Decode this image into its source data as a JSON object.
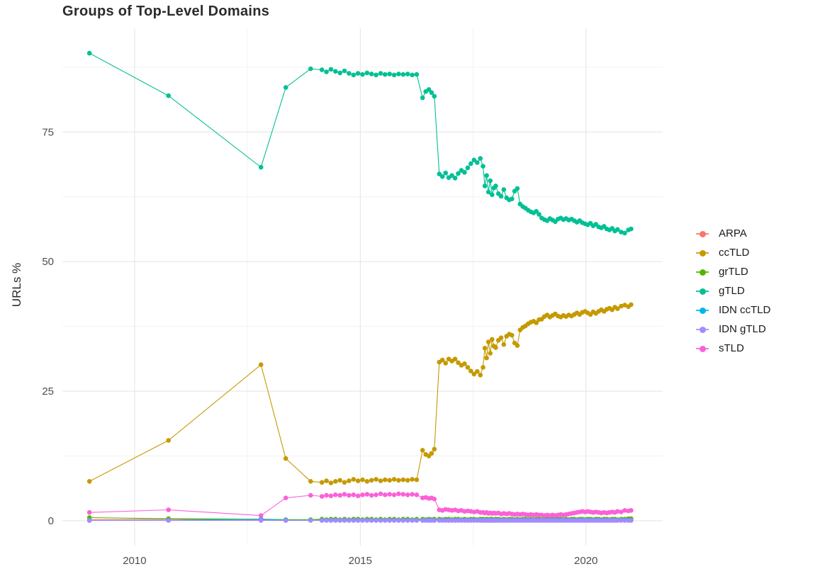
{
  "chart_data": {
    "type": "line",
    "title": "Groups of Top-Level Domains",
    "xlabel": "",
    "ylabel": "URLs %",
    "xlim": [
      2008.4,
      2021.7
    ],
    "ylim": [
      -4.8,
      95
    ],
    "x_ticks": [
      2010,
      2015,
      2020
    ],
    "x_minor_ticks": [
      2012.5,
      2017.5
    ],
    "y_ticks": [
      0,
      25,
      50,
      75
    ],
    "y_minor_ticks": [
      12.5,
      37.5,
      62.5,
      87.5
    ],
    "grid": true,
    "legend_position": "right",
    "x": [
      2009.0,
      2010.75,
      2012.8,
      2013.35,
      2013.9,
      2014.15,
      2014.25,
      2014.35,
      2014.45,
      2014.55,
      2014.65,
      2014.75,
      2014.85,
      2014.95,
      2015.05,
      2015.15,
      2015.25,
      2015.35,
      2015.45,
      2015.55,
      2015.65,
      2015.75,
      2015.85,
      2015.95,
      2016.05,
      2016.15,
      2016.25,
      2016.38,
      2016.45,
      2016.52,
      2016.58,
      2016.64,
      2016.75,
      2016.82,
      2016.89,
      2016.96,
      2017.03,
      2017.1,
      2017.17,
      2017.24,
      2017.31,
      2017.38,
      2017.45,
      2017.52,
      2017.59,
      2017.66,
      2017.72,
      2017.76,
      2017.8,
      2017.84,
      2017.88,
      2017.92,
      2017.96,
      2018.0,
      2018.06,
      2018.12,
      2018.18,
      2018.24,
      2018.3,
      2018.36,
      2018.42,
      2018.48,
      2018.54,
      2018.6,
      2018.66,
      2018.72,
      2018.78,
      2018.84,
      2018.9,
      2018.96,
      2019.02,
      2019.08,
      2019.14,
      2019.2,
      2019.26,
      2019.32,
      2019.38,
      2019.44,
      2019.5,
      2019.56,
      2019.62,
      2019.68,
      2019.74,
      2019.8,
      2019.86,
      2019.92,
      2019.98,
      2020.04,
      2020.1,
      2020.16,
      2020.22,
      2020.28,
      2020.34,
      2020.4,
      2020.46,
      2020.52,
      2020.58,
      2020.64,
      2020.7,
      2020.78,
      2020.86,
      2020.94,
      2021.0
    ],
    "series": [
      {
        "name": "ARPA",
        "color": "#F8766D",
        "values": [
          0.2,
          0.3,
          0.2,
          0.15,
          0.15,
          0.15,
          0.15,
          0.15,
          0.15,
          0.15,
          0.15,
          0.15,
          0.15,
          0.15,
          0.15,
          0.15,
          0.15,
          0.15,
          0.15,
          0.15,
          0.15,
          0.15,
          0.15,
          0.15,
          0.15,
          0.15,
          0.15,
          0.15,
          0.15,
          0.15,
          0.15,
          0.15,
          0.15,
          0.15,
          0.15,
          0.15,
          0.15,
          0.15,
          0.15,
          0.15,
          0.15,
          0.15,
          0.15,
          0.15,
          0.15,
          0.15,
          0.15,
          0.15,
          0.15,
          0.15,
          0.15,
          0.15,
          0.15,
          0.15,
          0.15,
          0.15,
          0.15,
          0.15,
          0.15,
          0.15,
          0.15,
          0.15,
          0.15,
          0.15,
          0.15,
          0.15,
          0.15,
          0.15,
          0.15,
          0.15,
          0.15,
          0.15,
          0.15,
          0.15,
          0.15,
          0.15,
          0.15,
          0.15,
          0.15,
          0.15,
          0.15,
          0.15,
          0.15,
          0.15,
          0.15,
          0.15,
          0.15,
          0.15,
          0.15,
          0.15,
          0.15,
          0.15,
          0.15,
          0.15,
          0.15,
          0.15,
          0.15,
          0.15,
          0.15,
          0.15,
          0.15,
          0.15,
          0.15
        ]
      },
      {
        "name": "ccTLD",
        "color": "#C49A00",
        "values": [
          7.6,
          15.5,
          30.1,
          12.0,
          7.6,
          7.4,
          7.7,
          7.3,
          7.6,
          7.8,
          7.4,
          7.7,
          8.0,
          7.7,
          7.9,
          7.6,
          7.8,
          8.0,
          7.7,
          7.9,
          7.8,
          8.0,
          7.8,
          7.9,
          7.8,
          8.0,
          7.9,
          13.6,
          12.8,
          12.5,
          13.0,
          13.8,
          30.6,
          31.0,
          30.4,
          31.2,
          30.8,
          31.2,
          30.5,
          30.0,
          30.3,
          29.6,
          28.9,
          28.3,
          28.8,
          28.1,
          29.6,
          33.3,
          31.4,
          34.5,
          32.3,
          35.0,
          33.7,
          33.4,
          34.8,
          35.3,
          34.0,
          35.6,
          36.0,
          35.8,
          34.3,
          33.8,
          36.8,
          37.3,
          37.6,
          38.0,
          38.3,
          38.5,
          38.2,
          38.8,
          38.9,
          39.4,
          39.7,
          39.3,
          39.6,
          39.9,
          39.5,
          39.3,
          39.6,
          39.4,
          39.7,
          39.5,
          39.8,
          40.1,
          39.8,
          40.2,
          40.4,
          40.1,
          39.8,
          40.3,
          40.0,
          40.4,
          40.7,
          40.4,
          40.8,
          41.0,
          40.7,
          41.2,
          40.9,
          41.4,
          41.6,
          41.3,
          41.7
        ]
      },
      {
        "name": "grTLD",
        "color": "#53B400",
        "values": [
          0.6,
          0.4,
          0.3,
          0.2,
          0.2,
          0.3,
          0.2,
          0.3,
          0.3,
          0.2,
          0.3,
          0.2,
          0.3,
          0.3,
          0.2,
          0.3,
          0.3,
          0.2,
          0.3,
          0.2,
          0.3,
          0.3,
          0.2,
          0.3,
          0.3,
          0.2,
          0.3,
          0.3,
          0.2,
          0.3,
          0.2,
          0.3,
          0.3,
          0.2,
          0.3,
          0.3,
          0.2,
          0.3,
          0.3,
          0.2,
          0.3,
          0.2,
          0.3,
          0.3,
          0.2,
          0.3,
          0.3,
          0.2,
          0.3,
          0.2,
          0.3,
          0.3,
          0.2,
          0.3,
          0.3,
          0.2,
          0.3,
          0.2,
          0.3,
          0.3,
          0.2,
          0.3,
          0.2,
          0.3,
          0.3,
          0.2,
          0.3,
          0.2,
          0.3,
          0.3,
          0.2,
          0.3,
          0.3,
          0.2,
          0.3,
          0.2,
          0.3,
          0.3,
          0.2,
          0.3,
          0.2,
          0.3,
          0.3,
          0.2,
          0.3,
          0.3,
          0.2,
          0.3,
          0.3,
          0.2,
          0.3,
          0.3,
          0.2,
          0.3,
          0.3,
          0.2,
          0.3,
          0.3,
          0.2,
          0.3,
          0.3,
          0.4,
          0.4
        ]
      },
      {
        "name": "gTLD",
        "color": "#00C094",
        "values": [
          90.2,
          82.0,
          68.2,
          83.6,
          87.2,
          87.0,
          86.6,
          87.1,
          86.7,
          86.4,
          86.8,
          86.3,
          86.0,
          86.3,
          86.1,
          86.4,
          86.2,
          86.0,
          86.3,
          86.1,
          86.2,
          86.0,
          86.2,
          86.1,
          86.2,
          86.0,
          86.1,
          81.6,
          82.8,
          83.2,
          82.6,
          81.9,
          66.9,
          66.4,
          67.1,
          66.2,
          66.6,
          66.1,
          67.0,
          67.6,
          67.2,
          68.1,
          68.9,
          69.6,
          69.1,
          69.9,
          68.4,
          64.6,
          66.6,
          63.4,
          65.6,
          62.9,
          64.2,
          64.6,
          63.1,
          62.6,
          63.9,
          62.3,
          61.9,
          62.1,
          63.6,
          64.1,
          61.1,
          60.6,
          60.3,
          59.9,
          59.6,
          59.4,
          59.7,
          59.1,
          58.4,
          58.1,
          57.9,
          58.3,
          58.0,
          57.7,
          58.2,
          58.4,
          58.1,
          58.3,
          58.0,
          58.2,
          57.9,
          57.6,
          57.9,
          57.5,
          57.3,
          57.1,
          57.4,
          56.9,
          57.2,
          56.7,
          56.5,
          56.8,
          56.3,
          56.1,
          56.4,
          55.9,
          56.2,
          55.7,
          55.5,
          56.1,
          56.3
        ]
      },
      {
        "name": "IDN ccTLD",
        "color": "#00B6EB",
        "values": [
          0.05,
          0.1,
          0.3,
          0.1,
          0.1,
          0.1,
          0.1,
          0.1,
          0.1,
          0.1,
          0.1,
          0.1,
          0.1,
          0.1,
          0.1,
          0.1,
          0.1,
          0.1,
          0.1,
          0.1,
          0.1,
          0.1,
          0.1,
          0.1,
          0.1,
          0.1,
          0.1,
          0.1,
          0.1,
          0.1,
          0.1,
          0.1,
          0.1,
          0.1,
          0.1,
          0.1,
          0.1,
          0.1,
          0.1,
          0.1,
          0.1,
          0.1,
          0.1,
          0.1,
          0.1,
          0.1,
          0.1,
          0.1,
          0.1,
          0.1,
          0.1,
          0.1,
          0.1,
          0.1,
          0.1,
          0.1,
          0.1,
          0.1,
          0.1,
          0.1,
          0.1,
          0.1,
          0.1,
          0.1,
          0.1,
          0.1,
          0.1,
          0.1,
          0.1,
          0.1,
          0.1,
          0.1,
          0.1,
          0.1,
          0.1,
          0.1,
          0.1,
          0.1,
          0.1,
          0.1,
          0.1,
          0.1,
          0.1,
          0.1,
          0.1,
          0.1,
          0.1,
          0.1,
          0.1,
          0.1,
          0.1,
          0.1,
          0.1,
          0.1,
          0.1,
          0.1,
          0.1,
          0.1,
          0.1,
          0.1,
          0.1,
          0.1,
          0.1
        ]
      },
      {
        "name": "IDN gTLD",
        "color": "#A58AFF",
        "values": [
          0.05,
          0.05,
          0.05,
          0.05,
          0.05,
          0.05,
          0.05,
          0.05,
          0.05,
          0.05,
          0.05,
          0.05,
          0.05,
          0.05,
          0.05,
          0.05,
          0.05,
          0.05,
          0.05,
          0.05,
          0.05,
          0.05,
          0.05,
          0.05,
          0.05,
          0.05,
          0.05,
          0.05,
          0.05,
          0.05,
          0.05,
          0.05,
          0.05,
          0.05,
          0.05,
          0.05,
          0.05,
          0.05,
          0.05,
          0.05,
          0.05,
          0.05,
          0.05,
          0.05,
          0.05,
          0.05,
          0.05,
          0.05,
          0.05,
          0.05,
          0.05,
          0.05,
          0.05,
          0.05,
          0.05,
          0.05,
          0.05,
          0.05,
          0.05,
          0.05,
          0.05,
          0.05,
          0.05,
          0.05,
          0.05,
          0.05,
          0.05,
          0.05,
          0.05,
          0.05,
          0.05,
          0.05,
          0.05,
          0.05,
          0.05,
          0.05,
          0.05,
          0.05,
          0.05,
          0.05,
          0.05,
          0.05,
          0.05,
          0.05,
          0.05,
          0.05,
          0.05,
          0.05,
          0.05,
          0.05,
          0.05,
          0.05,
          0.05,
          0.05,
          0.05,
          0.05,
          0.05,
          0.05,
          0.05,
          0.05,
          0.05,
          0.05,
          0.05
        ]
      },
      {
        "name": "sTLD",
        "color": "#FB61D7",
        "values": [
          1.6,
          2.1,
          1.0,
          4.4,
          4.9,
          4.7,
          4.9,
          4.8,
          5.0,
          4.9,
          5.1,
          4.9,
          5.0,
          4.8,
          5.0,
          5.1,
          4.9,
          5.0,
          5.2,
          5.0,
          5.1,
          5.0,
          5.2,
          5.1,
          5.0,
          5.1,
          5.0,
          4.4,
          4.5,
          4.3,
          4.4,
          4.2,
          2.1,
          2.0,
          2.2,
          2.1,
          2.0,
          2.1,
          1.9,
          2.0,
          1.8,
          1.9,
          1.8,
          1.7,
          1.8,
          1.6,
          1.6,
          1.5,
          1.6,
          1.4,
          1.5,
          1.4,
          1.5,
          1.4,
          1.5,
          1.3,
          1.4,
          1.3,
          1.4,
          1.3,
          1.2,
          1.3,
          1.2,
          1.3,
          1.2,
          1.1,
          1.2,
          1.1,
          1.2,
          1.1,
          1.1,
          1.0,
          1.1,
          1.0,
          1.1,
          1.0,
          1.1,
          1.2,
          1.1,
          1.2,
          1.3,
          1.4,
          1.5,
          1.6,
          1.7,
          1.8,
          1.7,
          1.8,
          1.7,
          1.6,
          1.7,
          1.6,
          1.5,
          1.6,
          1.5,
          1.6,
          1.7,
          1.6,
          1.8,
          1.7,
          2.0,
          1.9,
          2.0
        ]
      }
    ]
  }
}
